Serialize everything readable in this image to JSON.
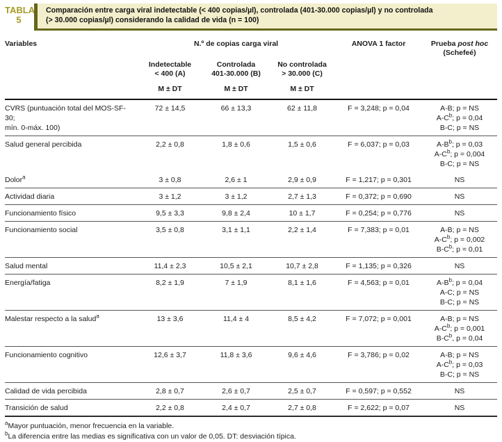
{
  "header": {
    "label_line1": "TABLA",
    "label_line2": "5",
    "title_line1": "Comparación entre carga viral indetectable (< 400 copias/µl), controlada (401-30.000 copias/µl) y no controlada",
    "title_line2": "(> 30.000 copias/µl) considerando la calidad de vida (n = 100)"
  },
  "colors": {
    "accent_olive": "#66661c",
    "label_olive": "#a49b25",
    "title_background": "#f3efcc"
  },
  "table": {
    "head": {
      "variables": "Variables",
      "span_group": "N.º de copias carga viral",
      "anova": "ANOVA 1 factor",
      "posthoc_prefix": "Prueba",
      "posthoc_italic": "post hoc",
      "posthoc_line2": "(Schefeé)",
      "cols": [
        {
          "line1": "Indetectable",
          "line2": "< 400 (A)"
        },
        {
          "line1": "Controlada",
          "line2": "401-30.000 (B)"
        },
        {
          "line1": "No controlada",
          "line2": "> 30.000 (C)"
        }
      ],
      "m_dt": "M ± DT"
    },
    "rows": [
      {
        "variable": [
          "CVRS (puntuación total del MOS-SF-30;",
          "mín. 0-máx. 100)"
        ],
        "a": "72 ± 14,5",
        "b": "66 ± 13,3",
        "c": "62 ± 11,8",
        "anova": "F = 3,248; p = 0,04",
        "posthoc": [
          "A-B; p = NS",
          "A-C^b; p = 0,04",
          "B-C; p = NS"
        ],
        "separator": false
      },
      {
        "variable": [
          "Salud general percibida"
        ],
        "a": "2,2 ± 0,8",
        "b": "1,8 ± 0,6",
        "c": "1,5 ± 0,6",
        "anova": "F = 6,037; p = 0,03",
        "posthoc": [
          "A-B^b; p = 0,03",
          "A-C^b; p = 0,004",
          "B-C; p = NS"
        ],
        "separator": true
      },
      {
        "variable": [
          "Dolor^a"
        ],
        "a": "3 ± 0,8",
        "b": "2,6 ± 1",
        "c": "2,9 ± 0,9",
        "anova": "F = 1,217; p = 0,301",
        "posthoc": [
          "NS"
        ],
        "separator": false
      },
      {
        "variable": [
          "Actividad diaria"
        ],
        "a": "3 ± 1,2",
        "b": "3 ± 1,2",
        "c": "2,7 ± 1,3",
        "anova": "F = 0,372; p = 0,690",
        "posthoc": [
          "NS"
        ],
        "separator": true
      },
      {
        "variable": [
          "Funcionamiento físico"
        ],
        "a": "9,5 ± 3,3",
        "b": "9,8 ± 2,4",
        "c": "10 ± 1,7",
        "anova": "F = 0,254; p = 0,776",
        "posthoc": [
          "NS"
        ],
        "separator": true
      },
      {
        "variable": [
          "Funcionamiento social"
        ],
        "a": "3,5 ± 0,8",
        "b": "3,1 ± 1,1",
        "c": "2,2 ± 1,4",
        "anova": "F = 7,383; p = 0,01",
        "posthoc": [
          "A-B; p = NS",
          "A-C^b; p = 0,002",
          "B-C^b; p = 0,01"
        ],
        "separator": true
      },
      {
        "variable": [
          "Salud mental"
        ],
        "a": "11,4 ± 2,3",
        "b": "10,5 ± 2,1",
        "c": "10,7 ± 2,8",
        "anova": "F = 1,135; p = 0,326",
        "posthoc": [
          "NS"
        ],
        "separator": true
      },
      {
        "variable": [
          "Energía/fatiga"
        ],
        "a": "8,2 ± 1,9",
        "b": "7 ± 1,9",
        "c": "8,1 ± 1,6",
        "anova": "F = 4,563; p = 0,01",
        "posthoc": [
          "A-B^b; p = 0,04",
          "A-C; p = NS",
          "B-C; p = NS"
        ],
        "separator": true
      },
      {
        "variable": [
          "Malestar respecto a la salud^a"
        ],
        "a": "13 ± 3,6",
        "b": "11,4 ± 4",
        "c": "8,5 ± 4,2",
        "anova": "F = 7,072; p = 0,001",
        "posthoc": [
          "A-B; p = NS",
          "A-C^b; p = 0,001",
          "B-C^b, p = 0,04"
        ],
        "separator": true
      },
      {
        "variable": [
          "Funcionamiento cognitivo"
        ],
        "a": "12,6 ± 3,7",
        "b": "11,8 ± 3,6",
        "c": "9,6 ± 4,6",
        "anova": "F = 3,786; p = 0,02",
        "posthoc": [
          "A-B; p = NS",
          "A-C^b; p = 0,03",
          "B-C; p = NS"
        ],
        "separator": true
      },
      {
        "variable": [
          "Calidad de vida percibida"
        ],
        "a": "2,8 ± 0,7",
        "b": "2,6 ± 0,7",
        "c": "2,5 ± 0,7",
        "anova": "F = 0,597; p = 0,552",
        "posthoc": [
          "NS"
        ],
        "separator": true
      },
      {
        "variable": [
          "Transición de salud"
        ],
        "a": "2,2 ± 0,8",
        "b": "2,4 ± 0,7",
        "c": "2,7 ± 0,8",
        "anova": "F = 2,622; p = 0,07",
        "posthoc": [
          "NS"
        ],
        "separator": true
      }
    ]
  },
  "footnotes": [
    {
      "sup": "a",
      "text": "Mayor puntuación, menor frecuencia en la variable."
    },
    {
      "sup": "b",
      "text": "La diferencia entre las medias es significativa con un valor de 0,05. DT: desviación típica."
    }
  ]
}
